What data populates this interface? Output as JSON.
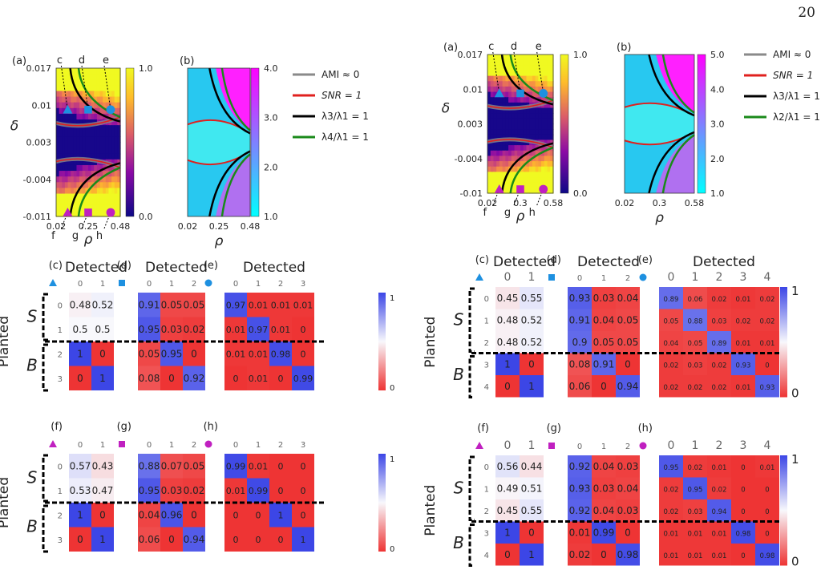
{
  "page_number": "20",
  "legend": {
    "left": [
      "AMI ≈ 0",
      "SNR = 1",
      "λ3/λ1 = 1",
      "λ4/λ1 = 1"
    ],
    "right": [
      "AMI ≈ 0",
      "SNR = 1",
      "λ3/λ1 = 1",
      "λ2/λ1 = 1"
    ],
    "colors": [
      "#8a8a8a",
      "#e0201e",
      "#000000",
      "#1a8a1a"
    ]
  },
  "chart_data": [
    {
      "type": "heatmap",
      "panel": "(a)",
      "figure": "left",
      "xlabel": "ρ",
      "ylabel": "δ",
      "x_ticks": [
        "0.02",
        "0.25",
        "0.48"
      ],
      "y_ticks": [
        "0.017",
        "0.01",
        "0.003",
        "-0.004",
        "-0.011"
      ],
      "colorbar_ticks": [
        "1.0",
        "0.0"
      ],
      "markers": [
        {
          "label": "c",
          "shape": "triangle",
          "color": "#1e90e0"
        },
        {
          "label": "d",
          "shape": "square",
          "color": "#1e90e0"
        },
        {
          "label": "e",
          "shape": "circle",
          "color": "#1e90e0"
        },
        {
          "label": "f",
          "shape": "triangle",
          "color": "#c020c0"
        },
        {
          "label": "g",
          "shape": "square",
          "color": "#c020c0"
        },
        {
          "label": "h",
          "shape": "circle",
          "color": "#c020c0"
        }
      ]
    },
    {
      "type": "heatmap",
      "panel": "(b)",
      "figure": "left",
      "xlabel": "ρ",
      "x_ticks": [
        "0.02",
        "0.25",
        "0.48"
      ],
      "colorbar_ticks": [
        "4.0",
        "3.0",
        "2.0",
        "1.0"
      ]
    },
    {
      "type": "heatmap",
      "panel": "(a)",
      "figure": "right",
      "xlabel": "ρ",
      "ylabel": "δ",
      "x_ticks": [
        "0.02",
        "0.3",
        "0.58"
      ],
      "y_ticks": [
        "0.017",
        "0.01",
        "0.003",
        "-0.004",
        "-0.01"
      ],
      "colorbar_ticks": [
        "1.0",
        "0.0"
      ],
      "markers": [
        {
          "label": "c",
          "shape": "triangle",
          "color": "#1e90e0"
        },
        {
          "label": "d",
          "shape": "square",
          "color": "#1e90e0"
        },
        {
          "label": "e",
          "shape": "circle",
          "color": "#1e90e0"
        },
        {
          "label": "f",
          "shape": "triangle",
          "color": "#c020c0"
        },
        {
          "label": "g",
          "shape": "square",
          "color": "#c020c0"
        },
        {
          "label": "h",
          "shape": "circle",
          "color": "#c020c0"
        }
      ]
    },
    {
      "type": "heatmap",
      "panel": "(b)",
      "figure": "right",
      "xlabel": "ρ",
      "x_ticks": [
        "0.02",
        "0.3",
        "0.58"
      ],
      "colorbar_ticks": [
        "5.0",
        "4.0",
        "3.0",
        "2.0",
        "1.0"
      ]
    },
    {
      "type": "heatmap",
      "figure": "left",
      "matrix_group": "top",
      "title": "Detected",
      "ylabel": "Planted",
      "row_groups": [
        "S",
        "B"
      ],
      "colorbar_ticks": [
        "1",
        "0"
      ],
      "matrices": [
        {
          "panel": "(c)",
          "marker": "triangle",
          "values": [
            [
              0.48,
              0.52
            ],
            [
              0.5,
              0.5
            ],
            [
              1.0,
              0.0
            ],
            [
              0.0,
              1.0
            ]
          ]
        },
        {
          "panel": "(d)",
          "marker": "square",
          "values": [
            [
              0.91,
              0.05,
              0.05
            ],
            [
              0.95,
              0.03,
              0.02
            ],
            [
              0.05,
              0.95,
              0.0
            ],
            [
              0.08,
              0.0,
              0.92
            ]
          ]
        },
        {
          "panel": "(e)",
          "marker": "circle",
          "values": [
            [
              0.97,
              0.01,
              0.01,
              0.01
            ],
            [
              0.01,
              0.97,
              0.01,
              0.0
            ],
            [
              0.01,
              0.01,
              0.98,
              0.0
            ],
            [
              0.0,
              0.01,
              0.0,
              0.99
            ]
          ]
        }
      ]
    },
    {
      "type": "heatmap",
      "figure": "left",
      "matrix_group": "bottom",
      "ylabel": "Planted",
      "row_groups": [
        "S",
        "B"
      ],
      "colorbar_ticks": [
        "1",
        "0"
      ],
      "matrices": [
        {
          "panel": "(f)",
          "marker": "triangle",
          "values": [
            [
              0.57,
              0.43
            ],
            [
              0.53,
              0.47
            ],
            [
              1.0,
              0.0
            ],
            [
              0.0,
              1.0
            ]
          ]
        },
        {
          "panel": "(g)",
          "marker": "square",
          "values": [
            [
              0.88,
              0.07,
              0.05
            ],
            [
              0.95,
              0.03,
              0.02
            ],
            [
              0.04,
              0.96,
              0.0
            ],
            [
              0.06,
              0.0,
              0.94
            ]
          ]
        },
        {
          "panel": "(h)",
          "marker": "circle",
          "values": [
            [
              0.99,
              0.01,
              0.0,
              0.0
            ],
            [
              0.01,
              0.99,
              0.0,
              0.0
            ],
            [
              0.0,
              0.0,
              1.0,
              0.0
            ],
            [
              0.0,
              0.0,
              0.0,
              1.0
            ]
          ]
        }
      ]
    },
    {
      "type": "heatmap",
      "figure": "right",
      "matrix_group": "top",
      "title": "Detected",
      "ylabel": "Planted",
      "row_groups": [
        "S",
        "B"
      ],
      "colorbar_ticks": [
        "1",
        "0"
      ],
      "matrices": [
        {
          "panel": "(c)",
          "marker": "triangle",
          "values": [
            [
              0.45,
              0.55
            ],
            [
              0.48,
              0.52
            ],
            [
              0.48,
              0.52
            ],
            [
              1.0,
              0.0
            ],
            [
              0.0,
              1.0
            ]
          ]
        },
        {
          "panel": "(d)",
          "marker": "square",
          "values": [
            [
              0.93,
              0.03,
              0.04
            ],
            [
              0.91,
              0.04,
              0.05
            ],
            [
              0.9,
              0.05,
              0.05
            ],
            [
              0.08,
              0.91,
              0.0
            ],
            [
              0.06,
              0.0,
              0.94
            ]
          ]
        },
        {
          "panel": "(e)",
          "marker": "circle",
          "values": [
            [
              0.89,
              0.06,
              0.02,
              0.01,
              0.02
            ],
            [
              0.05,
              0.88,
              0.03,
              0.02,
              0.02
            ],
            [
              0.04,
              0.05,
              0.89,
              0.01,
              0.01
            ],
            [
              0.02,
              0.03,
              0.02,
              0.93,
              0.0
            ],
            [
              0.02,
              0.02,
              0.02,
              0.01,
              0.93
            ]
          ]
        }
      ]
    },
    {
      "type": "heatmap",
      "figure": "right",
      "matrix_group": "bottom",
      "ylabel": "Planted",
      "row_groups": [
        "S",
        "B"
      ],
      "colorbar_ticks": [
        "1",
        "0"
      ],
      "matrices": [
        {
          "panel": "(f)",
          "marker": "triangle",
          "values": [
            [
              0.56,
              0.44
            ],
            [
              0.49,
              0.51
            ],
            [
              0.45,
              0.55
            ],
            [
              1.0,
              0.0
            ],
            [
              0.0,
              1.0
            ]
          ]
        },
        {
          "panel": "(g)",
          "marker": "square",
          "values": [
            [
              0.92,
              0.04,
              0.03
            ],
            [
              0.93,
              0.03,
              0.04
            ],
            [
              0.92,
              0.04,
              0.03
            ],
            [
              0.01,
              0.99,
              0.0
            ],
            [
              0.02,
              0.0,
              0.98
            ]
          ]
        },
        {
          "panel": "(h)",
          "marker": "circle",
          "values": [
            [
              0.95,
              0.02,
              0.01,
              0.0,
              0.01
            ],
            [
              0.02,
              0.95,
              0.02,
              0.0,
              0.0
            ],
            [
              0.02,
              0.03,
              0.94,
              0.0,
              0.0
            ],
            [
              0.01,
              0.01,
              0.01,
              0.98,
              0.0
            ],
            [
              0.01,
              0.01,
              0.01,
              0.0,
              0.98
            ]
          ]
        }
      ]
    }
  ]
}
